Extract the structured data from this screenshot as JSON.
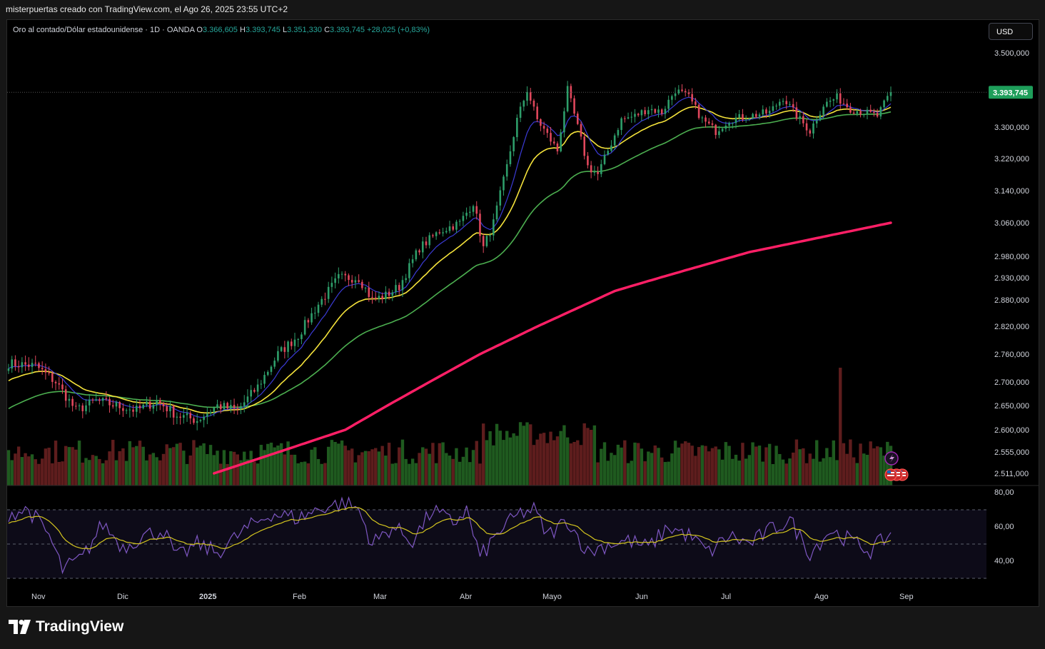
{
  "caption": "misterpuertas creado con TradingView.com, el Ago 26, 2025 23:55 UTC+2",
  "legend": {
    "symbol": "Oro al contado/Dólar estadounidense · 1D · OANDA",
    "open_label": "O",
    "open": "3.366,605",
    "high_label": "H",
    "high": "3.393,745",
    "low_label": "L",
    "low": "3.351,330",
    "close_label": "C",
    "close": "3.393,745",
    "change": "+28,025 (+0,83%)"
  },
  "currency": "USD",
  "brand": "TradingView",
  "colors": {
    "up": "#26a69a",
    "down": "#ef5350",
    "up_candle": "#2e9e6a",
    "down_candle": "#e0475c",
    "ema_fast": "#3b3bd6",
    "ema_mid": "#f5e33b",
    "ema_slow": "#4caf50",
    "ema_long": "#ff1f66",
    "vol_up": "#1f5a1f",
    "vol_down": "#5e1d1d",
    "rsi": "#7e57c2",
    "rsi_ma": "#d4c51f",
    "last_price": "#1e9e5a"
  },
  "icons": [
    "lightning-icon",
    "us-flag-icon"
  ],
  "chart_data": {
    "type": "candlestick",
    "price_axis": {
      "ticks": [
        "3.500,000",
        "3.300,000",
        "3.220,000",
        "3.140,000",
        "3.060,000",
        "2.980,000",
        "2.930,000",
        "2.880,000",
        "2.820,000",
        "2.760,000",
        "2.700,000",
        "2.650,000",
        "2.600,000",
        "2.555,000",
        "2.511,000"
      ],
      "tick_values": [
        3500,
        3300,
        3220,
        3140,
        3060,
        2980,
        2930,
        2880,
        2820,
        2760,
        2700,
        2650,
        2600,
        2555,
        2511
      ],
      "last_price_label": "3.393,745",
      "last_price": 3393.745
    },
    "rsi_axis": {
      "ticks": [
        "80,00",
        "60,00",
        "40,00"
      ],
      "tick_values": [
        80,
        60,
        40
      ],
      "bands": [
        70,
        50,
        30
      ]
    },
    "time_axis": {
      "labels": [
        "Nov",
        "Dic",
        "2025",
        "Feb",
        "Mar",
        "Abr",
        "Mayo",
        "Jun",
        "Jul",
        "Ago",
        "Sep"
      ]
    },
    "price_key": [
      {
        "d": 0,
        "p": 2740
      },
      {
        "d": 8,
        "p": 2735
      },
      {
        "d": 14,
        "p": 2700
      },
      {
        "d": 20,
        "p": 2640
      },
      {
        "d": 26,
        "p": 2660
      },
      {
        "d": 32,
        "p": 2650
      },
      {
        "d": 38,
        "p": 2640
      },
      {
        "d": 44,
        "p": 2660
      },
      {
        "d": 50,
        "p": 2630
      },
      {
        "d": 56,
        "p": 2620
      },
      {
        "d": 62,
        "p": 2650
      },
      {
        "d": 68,
        "p": 2640
      },
      {
        "d": 74,
        "p": 2690
      },
      {
        "d": 80,
        "p": 2760
      },
      {
        "d": 86,
        "p": 2800
      },
      {
        "d": 92,
        "p": 2870
      },
      {
        "d": 98,
        "p": 2930
      },
      {
        "d": 104,
        "p": 2930
      },
      {
        "d": 108,
        "p": 2880
      },
      {
        "d": 112,
        "p": 2890
      },
      {
        "d": 116,
        "p": 2910
      },
      {
        "d": 122,
        "p": 3000
      },
      {
        "d": 128,
        "p": 3040
      },
      {
        "d": 134,
        "p": 3060
      },
      {
        "d": 138,
        "p": 3110
      },
      {
        "d": 141,
        "p": 3000
      },
      {
        "d": 144,
        "p": 3060
      },
      {
        "d": 148,
        "p": 3200
      },
      {
        "d": 151,
        "p": 3320
      },
      {
        "d": 154,
        "p": 3400
      },
      {
        "d": 157,
        "p": 3320
      },
      {
        "d": 160,
        "p": 3280
      },
      {
        "d": 163,
        "p": 3240
      },
      {
        "d": 166,
        "p": 3400
      },
      {
        "d": 169,
        "p": 3300
      },
      {
        "d": 172,
        "p": 3200
      },
      {
        "d": 175,
        "p": 3180
      },
      {
        "d": 178,
        "p": 3240
      },
      {
        "d": 182,
        "p": 3320
      },
      {
        "d": 186,
        "p": 3330
      },
      {
        "d": 190,
        "p": 3350
      },
      {
        "d": 194,
        "p": 3340
      },
      {
        "d": 198,
        "p": 3400
      },
      {
        "d": 202,
        "p": 3380
      },
      {
        "d": 206,
        "p": 3320
      },
      {
        "d": 210,
        "p": 3290
      },
      {
        "d": 214,
        "p": 3320
      },
      {
        "d": 220,
        "p": 3330
      },
      {
        "d": 226,
        "p": 3340
      },
      {
        "d": 230,
        "p": 3380
      },
      {
        "d": 234,
        "p": 3330
      },
      {
        "d": 238,
        "p": 3290
      },
      {
        "d": 242,
        "p": 3360
      },
      {
        "d": 246,
        "p": 3380
      },
      {
        "d": 250,
        "p": 3350
      },
      {
        "d": 254,
        "p": 3340
      },
      {
        "d": 258,
        "p": 3330
      },
      {
        "d": 262,
        "p": 3393
      }
    ],
    "long_ema_key": [
      {
        "d": 61,
        "p": 2511
      },
      {
        "d": 100,
        "p": 2600
      },
      {
        "d": 140,
        "p": 2760
      },
      {
        "d": 180,
        "p": 2900
      },
      {
        "d": 220,
        "p": 2990
      },
      {
        "d": 262,
        "p": 3060
      }
    ],
    "rsi_key": [
      {
        "d": 0,
        "p": 68
      },
      {
        "d": 6,
        "p": 70
      },
      {
        "d": 12,
        "p": 55
      },
      {
        "d": 16,
        "p": 35
      },
      {
        "d": 22,
        "p": 42
      },
      {
        "d": 28,
        "p": 62
      },
      {
        "d": 34,
        "p": 48
      },
      {
        "d": 40,
        "p": 55
      },
      {
        "d": 46,
        "p": 58
      },
      {
        "d": 50,
        "p": 42
      },
      {
        "d": 56,
        "p": 50
      },
      {
        "d": 62,
        "p": 45
      },
      {
        "d": 70,
        "p": 58
      },
      {
        "d": 78,
        "p": 68
      },
      {
        "d": 86,
        "p": 65
      },
      {
        "d": 94,
        "p": 72
      },
      {
        "d": 100,
        "p": 74
      },
      {
        "d": 104,
        "p": 70
      },
      {
        "d": 108,
        "p": 50
      },
      {
        "d": 114,
        "p": 60
      },
      {
        "d": 120,
        "p": 52
      },
      {
        "d": 126,
        "p": 70
      },
      {
        "d": 132,
        "p": 62
      },
      {
        "d": 136,
        "p": 70
      },
      {
        "d": 140,
        "p": 42
      },
      {
        "d": 146,
        "p": 58
      },
      {
        "d": 152,
        "p": 68
      },
      {
        "d": 156,
        "p": 70
      },
      {
        "d": 160,
        "p": 55
      },
      {
        "d": 166,
        "p": 64
      },
      {
        "d": 172,
        "p": 45
      },
      {
        "d": 178,
        "p": 50
      },
      {
        "d": 184,
        "p": 52
      },
      {
        "d": 190,
        "p": 48
      },
      {
        "d": 196,
        "p": 60
      },
      {
        "d": 202,
        "p": 55
      },
      {
        "d": 208,
        "p": 45
      },
      {
        "d": 214,
        "p": 55
      },
      {
        "d": 220,
        "p": 50
      },
      {
        "d": 226,
        "p": 58
      },
      {
        "d": 232,
        "p": 64
      },
      {
        "d": 238,
        "p": 45
      },
      {
        "d": 244,
        "p": 58
      },
      {
        "d": 250,
        "p": 52
      },
      {
        "d": 256,
        "p": 46
      },
      {
        "d": 262,
        "p": 56
      }
    ]
  }
}
